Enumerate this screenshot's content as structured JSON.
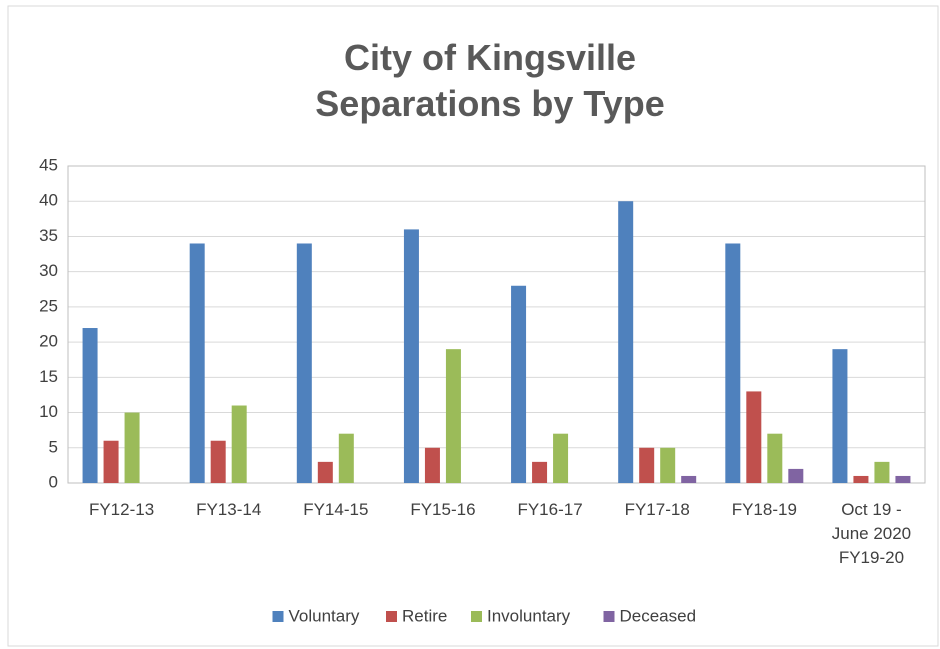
{
  "chart_data": {
    "type": "bar",
    "title": "City of Kingsville Separations by Type",
    "categories": [
      "FY12-13",
      "FY13-14",
      "FY14-15",
      "FY15-16",
      "FY16-17",
      "FY17-18",
      "FY18-19",
      "Oct 19 - June 2020 FY19-20"
    ],
    "series": [
      {
        "name": "Voluntary",
        "color": "#4f81bd",
        "values": [
          22,
          34,
          34,
          36,
          28,
          40,
          34,
          19
        ]
      },
      {
        "name": "Retire",
        "color": "#c0504d",
        "values": [
          6,
          6,
          3,
          5,
          3,
          5,
          13,
          1
        ]
      },
      {
        "name": "Involuntary",
        "color": "#9bbb59",
        "values": [
          10,
          11,
          7,
          19,
          7,
          5,
          7,
          3
        ]
      },
      {
        "name": "Deceased",
        "color": "#8064a2",
        "values": [
          0,
          0,
          0,
          0,
          0,
          1,
          2,
          1
        ]
      }
    ],
    "ylim": [
      0,
      45
    ],
    "yticks": [
      0,
      5,
      10,
      15,
      20,
      25,
      30,
      35,
      40,
      45
    ],
    "grid": true,
    "legend": "bottom"
  }
}
